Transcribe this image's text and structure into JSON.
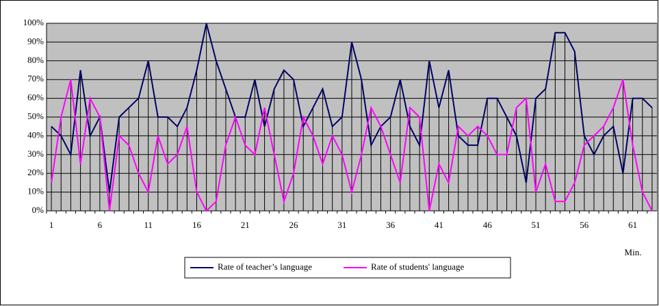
{
  "chart_data": {
    "type": "line",
    "categories": [
      1,
      null,
      null,
      null,
      null,
      6,
      null,
      null,
      null,
      null,
      11,
      null,
      null,
      null,
      null,
      16,
      null,
      null,
      null,
      null,
      21,
      null,
      null,
      null,
      null,
      26,
      null,
      null,
      null,
      null,
      31,
      null,
      null,
      null,
      null,
      36,
      null,
      null,
      null,
      null,
      41,
      null,
      null,
      null,
      null,
      46,
      null,
      null,
      null,
      null,
      51,
      null,
      null,
      null,
      null,
      56,
      null,
      null,
      null,
      null,
      61,
      null,
      null
    ],
    "x_label": "Min.",
    "series": [
      {
        "name": "Rate of teacher’s language",
        "color": "#000066",
        "values": [
          45,
          40,
          30,
          75,
          40,
          50,
          10,
          50,
          55,
          60,
          80,
          50,
          50,
          45,
          55,
          75,
          100,
          80,
          65,
          50,
          50,
          70,
          45,
          65,
          75,
          70,
          45,
          55,
          65,
          45,
          50,
          90,
          70,
          35,
          45,
          50,
          70,
          45,
          35,
          80,
          55,
          75,
          40,
          35,
          35,
          60,
          60,
          50,
          40,
          15,
          60,
          65,
          95,
          95,
          85,
          40,
          30,
          40,
          45,
          20,
          60,
          60,
          55
        ]
      },
      {
        "name": "Rate of students' language",
        "color": "#ff00ff",
        "values": [
          15,
          50,
          70,
          25,
          60,
          50,
          0,
          40,
          35,
          20,
          10,
          40,
          25,
          30,
          45,
          10,
          0,
          5,
          35,
          50,
          35,
          30,
          55,
          30,
          5,
          20,
          50,
          40,
          25,
          40,
          30,
          10,
          30,
          55,
          45,
          30,
          15,
          55,
          50,
          0,
          25,
          15,
          45,
          40,
          45,
          40,
          30,
          30,
          55,
          60,
          10,
          25,
          5,
          5,
          15,
          35,
          40,
          45,
          55,
          70,
          35,
          10,
          0
        ]
      }
    ],
    "ylim": [
      0,
      100
    ],
    "yticks": [
      {
        "value": 0,
        "label": "0%"
      },
      {
        "value": 10,
        "label": "10%"
      },
      {
        "value": 20,
        "label": "20%"
      },
      {
        "value": 30,
        "label": "30%"
      },
      {
        "value": 40,
        "label": "40%"
      },
      {
        "value": 50,
        "label": "50%"
      },
      {
        "value": 60,
        "label": "60%"
      },
      {
        "value": 70,
        "label": "70%"
      },
      {
        "value": 80,
        "label": "80%"
      },
      {
        "value": 90,
        "label": "90%"
      },
      {
        "value": 100,
        "label": "100%"
      }
    ],
    "grid": true,
    "legend": "bottom"
  }
}
